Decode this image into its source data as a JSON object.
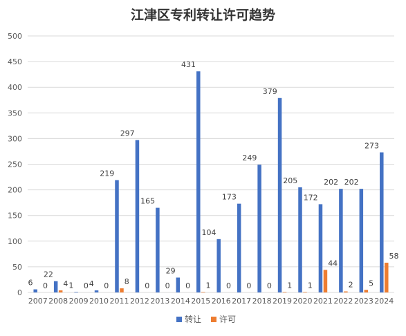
{
  "chart_data": {
    "type": "bar",
    "title": "江津区专利转让许可趋势",
    "categories": [
      "2007",
      "2008",
      "2009",
      "2010",
      "2011",
      "2012",
      "2013",
      "2014",
      "2015",
      "2016",
      "2017",
      "2018",
      "2019",
      "2020",
      "2021",
      "2022",
      "2023",
      "2024"
    ],
    "series": [
      {
        "name": "转让",
        "color": "#4472c4",
        "values": [
          6,
          22,
          1,
          4,
          219,
          297,
          165,
          29,
          431,
          104,
          173,
          249,
          379,
          205,
          172,
          202,
          202,
          273
        ]
      },
      {
        "name": "许可",
        "color": "#ed7d31",
        "values": [
          0,
          4,
          0,
          0,
          8,
          0,
          0,
          0,
          1,
          0,
          0,
          0,
          1,
          1,
          44,
          2,
          5,
          58
        ]
      }
    ],
    "yticks": [
      "0",
      "50",
      "100",
      "150",
      "200",
      "250",
      "300",
      "350",
      "400",
      "450",
      "500"
    ],
    "ylim": [
      0,
      500
    ],
    "xlabel": "",
    "ylabel": "",
    "grid": true,
    "legend_position": "bottom"
  }
}
